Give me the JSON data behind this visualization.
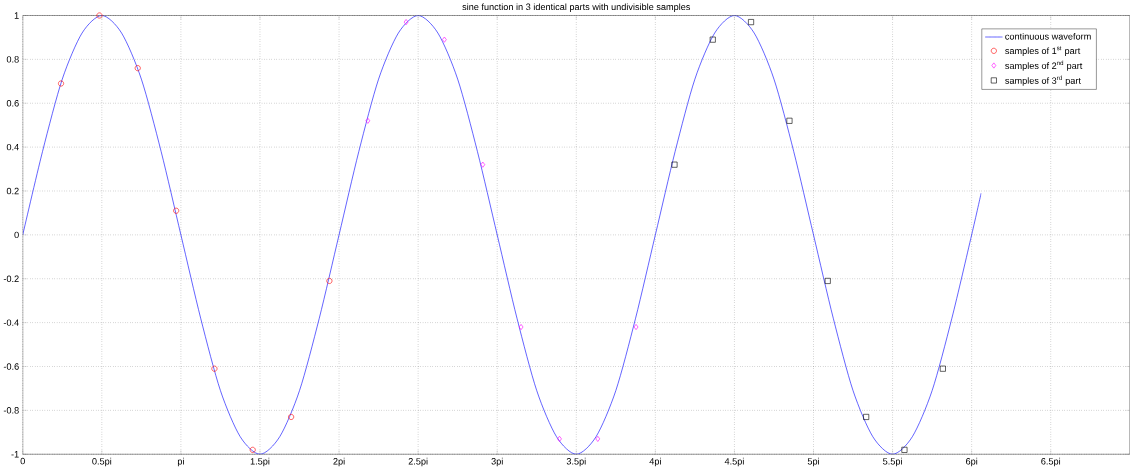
{
  "chart_data": {
    "type": "line",
    "title": "sine function in 3 identical parts with undivisible samples",
    "xlim": [
      0,
      7
    ],
    "ylim": [
      -1,
      1
    ],
    "xticks": [
      0,
      {
        "value": 0.5,
        "label": "0.5pi"
      },
      {
        "value": 1,
        "label": "pi"
      },
      {
        "value": 1.5,
        "label": "1.5pi"
      },
      {
        "value": 2,
        "label": "2pi"
      },
      {
        "value": 2.5,
        "label": "2.5pi"
      },
      {
        "value": 3,
        "label": "3pi"
      },
      {
        "value": 3.5,
        "label": "3.5pi"
      },
      {
        "value": 4,
        "label": "4pi"
      },
      {
        "value": 4.5,
        "label": "4.5pi"
      },
      {
        "value": 5,
        "label": "5pi"
      },
      {
        "value": 5.5,
        "label": "5.5pi"
      },
      {
        "value": 6,
        "label": "6pi"
      },
      {
        "value": 6.5,
        "label": "6.5pi"
      }
    ],
    "yticks": [
      -1,
      -0.8,
      -0.6,
      -0.4,
      -0.2,
      0,
      0.2,
      0.4,
      0.6,
      0.8,
      1
    ],
    "grid": true,
    "legend": "top right",
    "series": [
      {
        "name": "continuous waveform",
        "type": "line",
        "color": "#0000ff",
        "marker": "none",
        "line_style": "solid",
        "x": [
          0,
          0.125,
          0.25,
          0.375,
          0.5,
          0.625,
          0.75,
          0.875,
          1,
          1.125,
          1.25,
          1.375,
          1.5,
          1.625,
          1.75,
          1.875,
          2,
          2.125,
          2.25,
          2.375,
          2.5,
          2.625,
          2.75,
          2.875,
          3,
          3.125,
          3.25,
          3.375,
          3.5,
          3.625,
          3.75,
          3.875,
          4,
          4.125,
          4.25,
          4.375,
          4.5,
          4.625,
          4.75,
          4.875,
          5,
          5.125,
          5.25,
          5.375,
          5.5,
          5.625,
          5.75,
          5.875,
          6,
          6.06
        ],
        "values": [
          0,
          0.38,
          0.71,
          0.92,
          1,
          0.92,
          0.71,
          0.38,
          0,
          -0.38,
          -0.71,
          -0.92,
          -1,
          -0.92,
          -0.71,
          -0.38,
          0,
          0.38,
          0.71,
          0.92,
          1,
          0.92,
          0.71,
          0.38,
          0,
          -0.38,
          -0.71,
          -0.92,
          -1,
          -0.92,
          -0.71,
          -0.38,
          0,
          0.38,
          0.71,
          0.92,
          1,
          0.92,
          0.71,
          0.38,
          0,
          -0.38,
          -0.71,
          -0.92,
          -1,
          -0.92,
          -0.71,
          -0.38,
          0,
          0.19
        ]
      },
      {
        "name": "samples of 1$^{st}$ part",
        "type": "scatter",
        "color": "#ff0000",
        "marker": "circle",
        "x": [
          0.242,
          0.485,
          0.727,
          0.97,
          1.212,
          1.454,
          1.697,
          1.939
        ],
        "values": [
          0.69,
          1.0,
          0.76,
          0.11,
          -0.61,
          -0.98,
          -0.83,
          -0.21
        ]
      },
      {
        "name": "samples of 2$^{nd}$ part",
        "type": "scatter",
        "color": "#ff00ff",
        "marker": "diamond",
        "x": [
          2.182,
          2.424,
          2.666,
          2.909,
          3.151,
          3.394,
          3.636,
          3.878
        ],
        "values": [
          0.52,
          0.97,
          0.89,
          0.32,
          -0.42,
          -0.93,
          -0.93,
          -0.42
        ]
      },
      {
        "name": "samples of 3$^{rd}$ part",
        "type": "scatter",
        "color": "#000000",
        "marker": "square",
        "x": [
          4.121,
          4.363,
          4.605,
          4.848,
          5.09,
          5.333,
          5.575,
          5.818
        ],
        "values": [
          0.32,
          0.89,
          0.97,
          0.52,
          -0.21,
          -0.83,
          -0.98,
          -0.61
        ]
      }
    ]
  }
}
